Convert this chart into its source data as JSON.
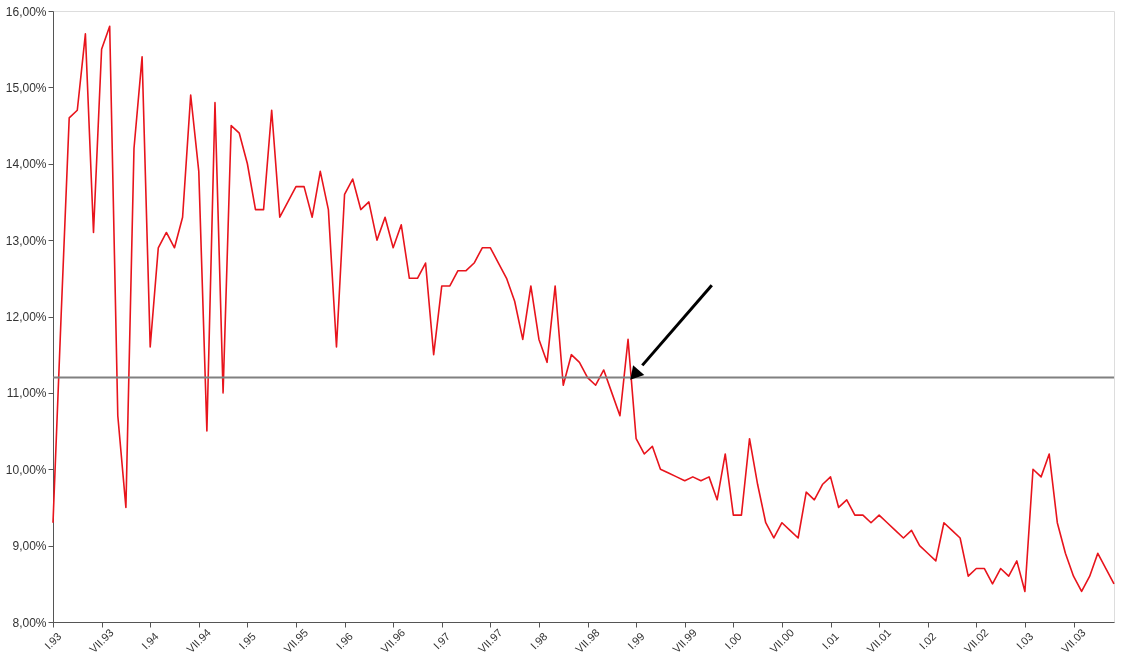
{
  "chart_data": {
    "type": "line",
    "categories": [
      "I.93",
      null,
      null,
      null,
      null,
      null,
      "VII.93",
      null,
      null,
      null,
      null,
      null,
      "I.94",
      null,
      null,
      null,
      null,
      null,
      "VII.94",
      null,
      null,
      null,
      null,
      null,
      "I.95",
      null,
      null,
      null,
      null,
      null,
      "VII.95",
      null,
      null,
      null,
      null,
      null,
      "I.96",
      null,
      null,
      null,
      null,
      null,
      "VII.96",
      null,
      null,
      null,
      null,
      null,
      "I.97",
      null,
      null,
      null,
      null,
      null,
      "VII.97",
      null,
      null,
      null,
      null,
      null,
      "I.98",
      null,
      null,
      null,
      null,
      null,
      "VII.98",
      null,
      null,
      null,
      null,
      null,
      "I.99",
      null,
      null,
      null,
      null,
      null,
      "VII.99",
      null,
      null,
      null,
      null,
      null,
      "I.00",
      null,
      null,
      null,
      null,
      null,
      "VII.00",
      null,
      null,
      null,
      null,
      null,
      "I.01",
      null,
      null,
      null,
      null,
      null,
      "VII.01",
      null,
      null,
      null,
      null,
      null,
      "I.02",
      null,
      null,
      null,
      null,
      null,
      "VII.02",
      null,
      null,
      null,
      null,
      null,
      "I.03",
      null,
      null,
      null,
      null,
      null,
      "VII.03",
      null,
      null,
      null,
      null,
      null
    ],
    "series": [
      {
        "color": "#e8141c",
        "values": [
          9.3,
          12.0,
          14.6,
          14.7,
          15.7,
          13.1,
          15.5,
          15.8,
          10.7,
          9.5,
          14.2,
          15.4,
          11.6,
          12.9,
          13.1,
          12.9,
          13.3,
          14.9,
          13.9,
          10.5,
          14.8,
          11.0,
          14.5,
          14.4,
          14.0,
          13.4,
          13.4,
          14.7,
          13.3,
          13.5,
          13.7,
          13.7,
          13.3,
          13.9,
          13.4,
          11.6,
          13.6,
          13.8,
          13.4,
          13.5,
          13.0,
          13.3,
          12.9,
          13.2,
          12.5,
          12.5,
          12.7,
          11.5,
          12.4,
          12.4,
          12.6,
          12.6,
          12.7,
          12.9,
          12.9,
          12.7,
          12.5,
          12.2,
          11.7,
          12.4,
          11.7,
          11.4,
          12.4,
          11.1,
          11.5,
          11.4,
          11.2,
          11.1,
          11.3,
          11.0,
          10.7,
          11.7,
          10.4,
          10.2,
          10.3,
          10.0,
          9.95,
          9.9,
          9.85,
          9.9,
          9.85,
          9.9,
          9.6,
          10.2,
          9.4,
          9.4,
          10.4,
          9.8,
          9.3,
          9.1,
          9.3,
          9.2,
          9.1,
          9.7,
          9.6,
          9.8,
          9.9,
          9.5,
          9.6,
          9.4,
          9.4,
          9.3,
          9.4,
          9.3,
          9.2,
          9.1,
          9.2,
          9.0,
          8.9,
          8.8,
          9.3,
          9.2,
          9.1,
          8.6,
          8.7,
          8.7,
          8.5,
          8.7,
          8.6,
          8.8,
          8.4,
          10.0,
          9.9,
          10.2,
          9.3,
          8.9,
          8.6,
          8.4,
          8.6,
          8.9,
          8.7,
          8.5
        ]
      }
    ],
    "ylim": [
      8,
      16
    ],
    "yticks": [
      {
        "value": 8,
        "label": "8,00%"
      },
      {
        "value": 9,
        "label": "9,00%"
      },
      {
        "value": 10,
        "label": "10,00%"
      },
      {
        "value": 11,
        "label": "11,00%"
      },
      {
        "value": 12,
        "label": "12,00%"
      },
      {
        "value": 13,
        "label": "13,00%"
      },
      {
        "value": 14,
        "label": "14,00%"
      },
      {
        "value": 15,
        "label": "15,00%"
      },
      {
        "value": 16,
        "label": "16,00%"
      }
    ],
    "ref_lines": [
      {
        "axis": "y",
        "value": 11.2,
        "color": "#808080"
      }
    ],
    "grid": false,
    "legend": false,
    "marker": "none",
    "line_style": "solid"
  }
}
